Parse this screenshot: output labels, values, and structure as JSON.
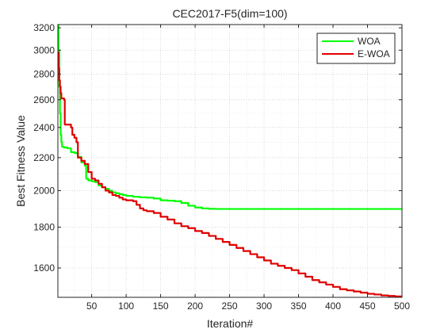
{
  "chart_data": {
    "type": "line",
    "title": "CEC2017-F5(dim=100)",
    "xlabel": "Iteration#",
    "ylabel": "Best Fitness Value",
    "xlim": [
      1,
      500
    ],
    "ylim": [
      1470,
      3230
    ],
    "yscale": "log",
    "grid": true,
    "legend": "top-right",
    "xticks": [
      50,
      100,
      150,
      200,
      250,
      300,
      350,
      400,
      450,
      500
    ],
    "yticks": [
      1600,
      1800,
      2000,
      2200,
      2400,
      2600,
      2800,
      3000,
      3200
    ],
    "series": [
      {
        "name": "WOA",
        "color": "#00ff00",
        "points": [
          [
            1,
            3230
          ],
          [
            2,
            3000
          ],
          [
            3,
            2700
          ],
          [
            4,
            2500
          ],
          [
            5,
            2350
          ],
          [
            6,
            2300
          ],
          [
            7,
            2270
          ],
          [
            10,
            2265
          ],
          [
            15,
            2260
          ],
          [
            20,
            2235
          ],
          [
            25,
            2230
          ],
          [
            28,
            2228
          ],
          [
            30,
            2205
          ],
          [
            35,
            2170
          ],
          [
            40,
            2150
          ],
          [
            42,
            2070
          ],
          [
            45,
            2060
          ],
          [
            50,
            2055
          ],
          [
            55,
            2050
          ],
          [
            60,
            2030
          ],
          [
            65,
            2020
          ],
          [
            70,
            2010
          ],
          [
            75,
            2000
          ],
          [
            80,
            1990
          ],
          [
            85,
            1985
          ],
          [
            90,
            1980
          ],
          [
            95,
            1975
          ],
          [
            100,
            1970
          ],
          [
            110,
            1965
          ],
          [
            120,
            1962
          ],
          [
            130,
            1960
          ],
          [
            140,
            1955
          ],
          [
            150,
            1945
          ],
          [
            160,
            1943
          ],
          [
            170,
            1940
          ],
          [
            180,
            1930
          ],
          [
            190,
            1915
          ],
          [
            200,
            1905
          ],
          [
            210,
            1900
          ],
          [
            220,
            1898
          ],
          [
            230,
            1897
          ],
          [
            250,
            1897
          ],
          [
            300,
            1897
          ],
          [
            350,
            1897
          ],
          [
            400,
            1897
          ],
          [
            450,
            1897
          ],
          [
            500,
            1897
          ]
        ]
      },
      {
        "name": "E-WOA",
        "color": "#e00000",
        "points": [
          [
            1,
            2980
          ],
          [
            2,
            2850
          ],
          [
            3,
            2750
          ],
          [
            4,
            2700
          ],
          [
            5,
            2650
          ],
          [
            6,
            2610
          ],
          [
            8,
            2610
          ],
          [
            10,
            2600
          ],
          [
            11,
            2420
          ],
          [
            15,
            2420
          ],
          [
            20,
            2400
          ],
          [
            22,
            2350
          ],
          [
            25,
            2330
          ],
          [
            28,
            2300
          ],
          [
            30,
            2200
          ],
          [
            35,
            2180
          ],
          [
            40,
            2160
          ],
          [
            45,
            2110
          ],
          [
            50,
            2070
          ],
          [
            55,
            2060
          ],
          [
            60,
            2040
          ],
          [
            65,
            2020
          ],
          [
            70,
            2000
          ],
          [
            75,
            1990
          ],
          [
            80,
            1975
          ],
          [
            85,
            1970
          ],
          [
            90,
            1960
          ],
          [
            95,
            1950
          ],
          [
            100,
            1945
          ],
          [
            110,
            1940
          ],
          [
            115,
            1920
          ],
          [
            120,
            1900
          ],
          [
            125,
            1890
          ],
          [
            130,
            1885
          ],
          [
            140,
            1875
          ],
          [
            150,
            1855
          ],
          [
            160,
            1840
          ],
          [
            170,
            1820
          ],
          [
            180,
            1805
          ],
          [
            190,
            1795
          ],
          [
            200,
            1780
          ],
          [
            210,
            1770
          ],
          [
            220,
            1755
          ],
          [
            230,
            1740
          ],
          [
            240,
            1725
          ],
          [
            250,
            1710
          ],
          [
            260,
            1695
          ],
          [
            270,
            1680
          ],
          [
            280,
            1665
          ],
          [
            290,
            1650
          ],
          [
            300,
            1635
          ],
          [
            310,
            1620
          ],
          [
            320,
            1610
          ],
          [
            330,
            1600
          ],
          [
            340,
            1590
          ],
          [
            350,
            1575
          ],
          [
            360,
            1560
          ],
          [
            370,
            1545
          ],
          [
            380,
            1535
          ],
          [
            390,
            1525
          ],
          [
            400,
            1515
          ],
          [
            410,
            1505
          ],
          [
            420,
            1500
          ],
          [
            430,
            1495
          ],
          [
            440,
            1490
          ],
          [
            450,
            1485
          ],
          [
            460,
            1482
          ],
          [
            470,
            1478
          ],
          [
            480,
            1476
          ],
          [
            490,
            1474
          ],
          [
            500,
            1472
          ]
        ]
      }
    ]
  }
}
